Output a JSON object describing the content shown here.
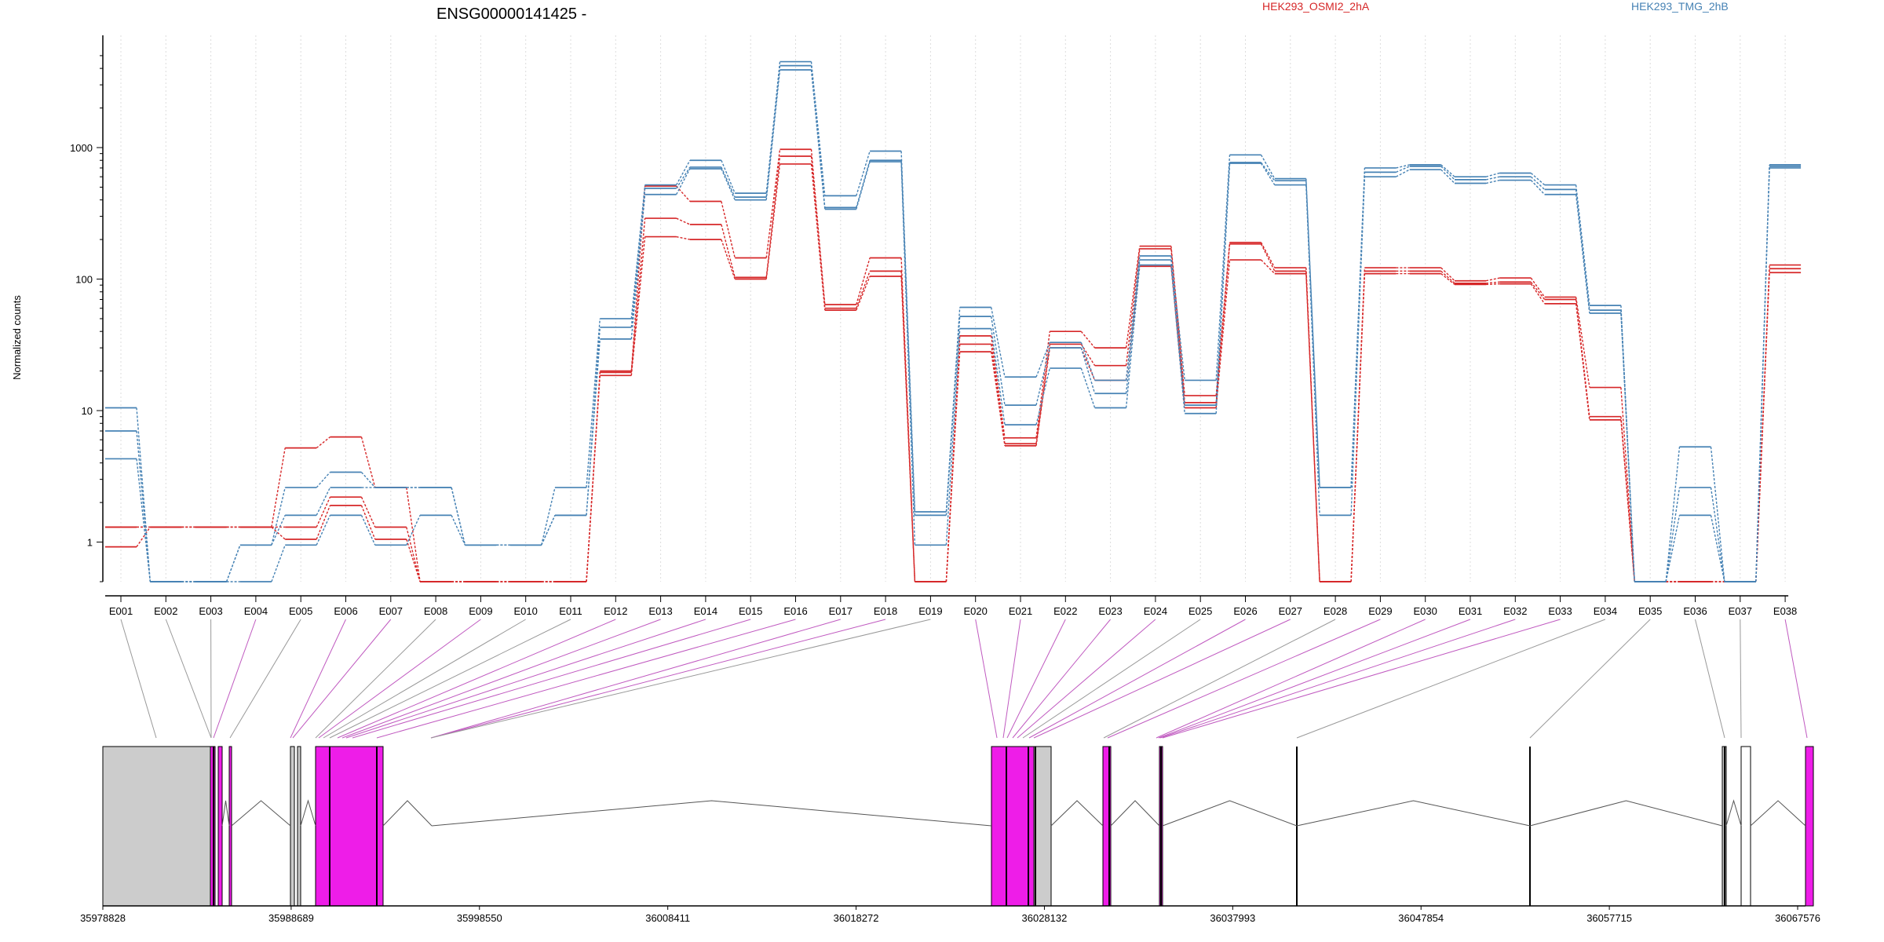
{
  "chart_data": {
    "type": "line",
    "title": "ENSG00000141425 -",
    "ylabel": "Normalized counts",
    "yscale": "log",
    "ylim": [
      0.5,
      5000
    ],
    "yticks": [
      1,
      10,
      100,
      1000
    ],
    "ytick_labels": [
      "1",
      "10",
      "100",
      "1000"
    ],
    "grid": "vertical",
    "legend": [
      "HEK293_OSMI2_2hA",
      "HEK293_TMG_2hB"
    ],
    "legend_position": "top",
    "categories": [
      "E001",
      "E002",
      "E003",
      "E004",
      "E005",
      "E006",
      "E007",
      "E008",
      "E009",
      "E010",
      "E011",
      "E012",
      "E013",
      "E014",
      "E015",
      "E016",
      "E017",
      "E018",
      "E019",
      "E020",
      "E021",
      "E022",
      "E023",
      "E024",
      "E025",
      "E026",
      "E027",
      "E028",
      "E029",
      "E030",
      "E031",
      "E032",
      "E033",
      "E034",
      "E035",
      "E036",
      "E037",
      "E038"
    ],
    "series": [
      {
        "group": "HEK293_OSMI2_2hA",
        "color": "#d62728",
        "values": [
          0.92,
          1.3,
          1.3,
          1.3,
          1.05,
          1.9,
          1.05,
          0.5,
          0.5,
          0.5,
          0.5,
          18.5,
          210,
          200,
          100,
          750,
          58,
          105,
          0.5,
          28,
          5.4,
          30,
          17,
          125,
          10.5,
          140,
          110,
          0.5,
          110,
          110,
          91,
          92,
          65,
          8.5,
          0.5,
          0.5,
          0.5,
          112
        ]
      },
      {
        "group": "HEK293_OSMI2_2hA",
        "color": "#d62728",
        "values": [
          1.3,
          1.3,
          1.3,
          1.3,
          1.3,
          2.2,
          1.3,
          0.5,
          0.5,
          0.5,
          0.5,
          19.5,
          290,
          260,
          103,
          860,
          60,
          115,
          0.5,
          32,
          5.6,
          32,
          22,
          170,
          11.5,
          185,
          115,
          0.5,
          115,
          115,
          93,
          95,
          70,
          9,
          0.5,
          0.5,
          0.5,
          120
        ]
      },
      {
        "group": "HEK293_OSMI2_2hA",
        "color": "#d62728",
        "values": [
          1.3,
          1.3,
          1.3,
          1.3,
          5.2,
          6.3,
          2.6,
          0.5,
          0.5,
          0.5,
          0.5,
          20,
          510,
          390,
          145,
          970,
          64,
          145,
          0.5,
          37,
          6.2,
          40,
          30,
          178,
          13,
          190,
          122,
          0.5,
          122,
          122,
          97,
          102,
          73,
          15,
          0.5,
          0.5,
          0.5,
          128
        ]
      },
      {
        "group": "HEK293_TMG_2hB",
        "color": "#4682b4",
        "values": [
          4.3,
          0.5,
          0.5,
          0.5,
          0.95,
          1.6,
          0.95,
          1.6,
          0.95,
          0.95,
          1.6,
          35,
          440,
          690,
          400,
          3900,
          340,
          780,
          0.95,
          42,
          7.8,
          21,
          10.5,
          128,
          9.5,
          760,
          520,
          1.6,
          600,
          680,
          535,
          565,
          440,
          55,
          0.5,
          1.6,
          0.5,
          700
        ]
      },
      {
        "group": "HEK293_TMG_2hB",
        "color": "#4682b4",
        "values": [
          7.0,
          0.5,
          0.5,
          0.95,
          1.6,
          2.6,
          2.6,
          2.6,
          0.95,
          0.95,
          1.6,
          43,
          490,
          710,
          420,
          4200,
          350,
          800,
          1.6,
          52,
          11,
          30,
          13.5,
          140,
          11,
          770,
          560,
          2.6,
          650,
          720,
          570,
          600,
          480,
          58,
          0.5,
          2.6,
          0.5,
          720
        ]
      },
      {
        "group": "HEK293_TMG_2hB",
        "color": "#4682b4",
        "values": [
          10.5,
          0.5,
          0.5,
          0.95,
          2.6,
          3.4,
          2.6,
          2.6,
          0.95,
          0.95,
          2.6,
          50,
          520,
          800,
          450,
          4500,
          430,
          940,
          1.7,
          61,
          18,
          33,
          17,
          150,
          17,
          880,
          580,
          2.6,
          700,
          740,
          600,
          640,
          520,
          63,
          0.5,
          5.3,
          0.5,
          740
        ]
      }
    ],
    "genome_track": {
      "coordinate_ticks": [
        "35978828",
        "35988689",
        "35998550",
        "36008411",
        "36018272",
        "36028132",
        "36037993",
        "36047854",
        "36057715",
        "36067576"
      ],
      "exon_colors": {
        "tested": "#ee1de8",
        "untested": "#cccccc",
        "outline": "#000000",
        "link_tested": "#c05ac0",
        "link_untested": "#999999"
      }
    }
  }
}
